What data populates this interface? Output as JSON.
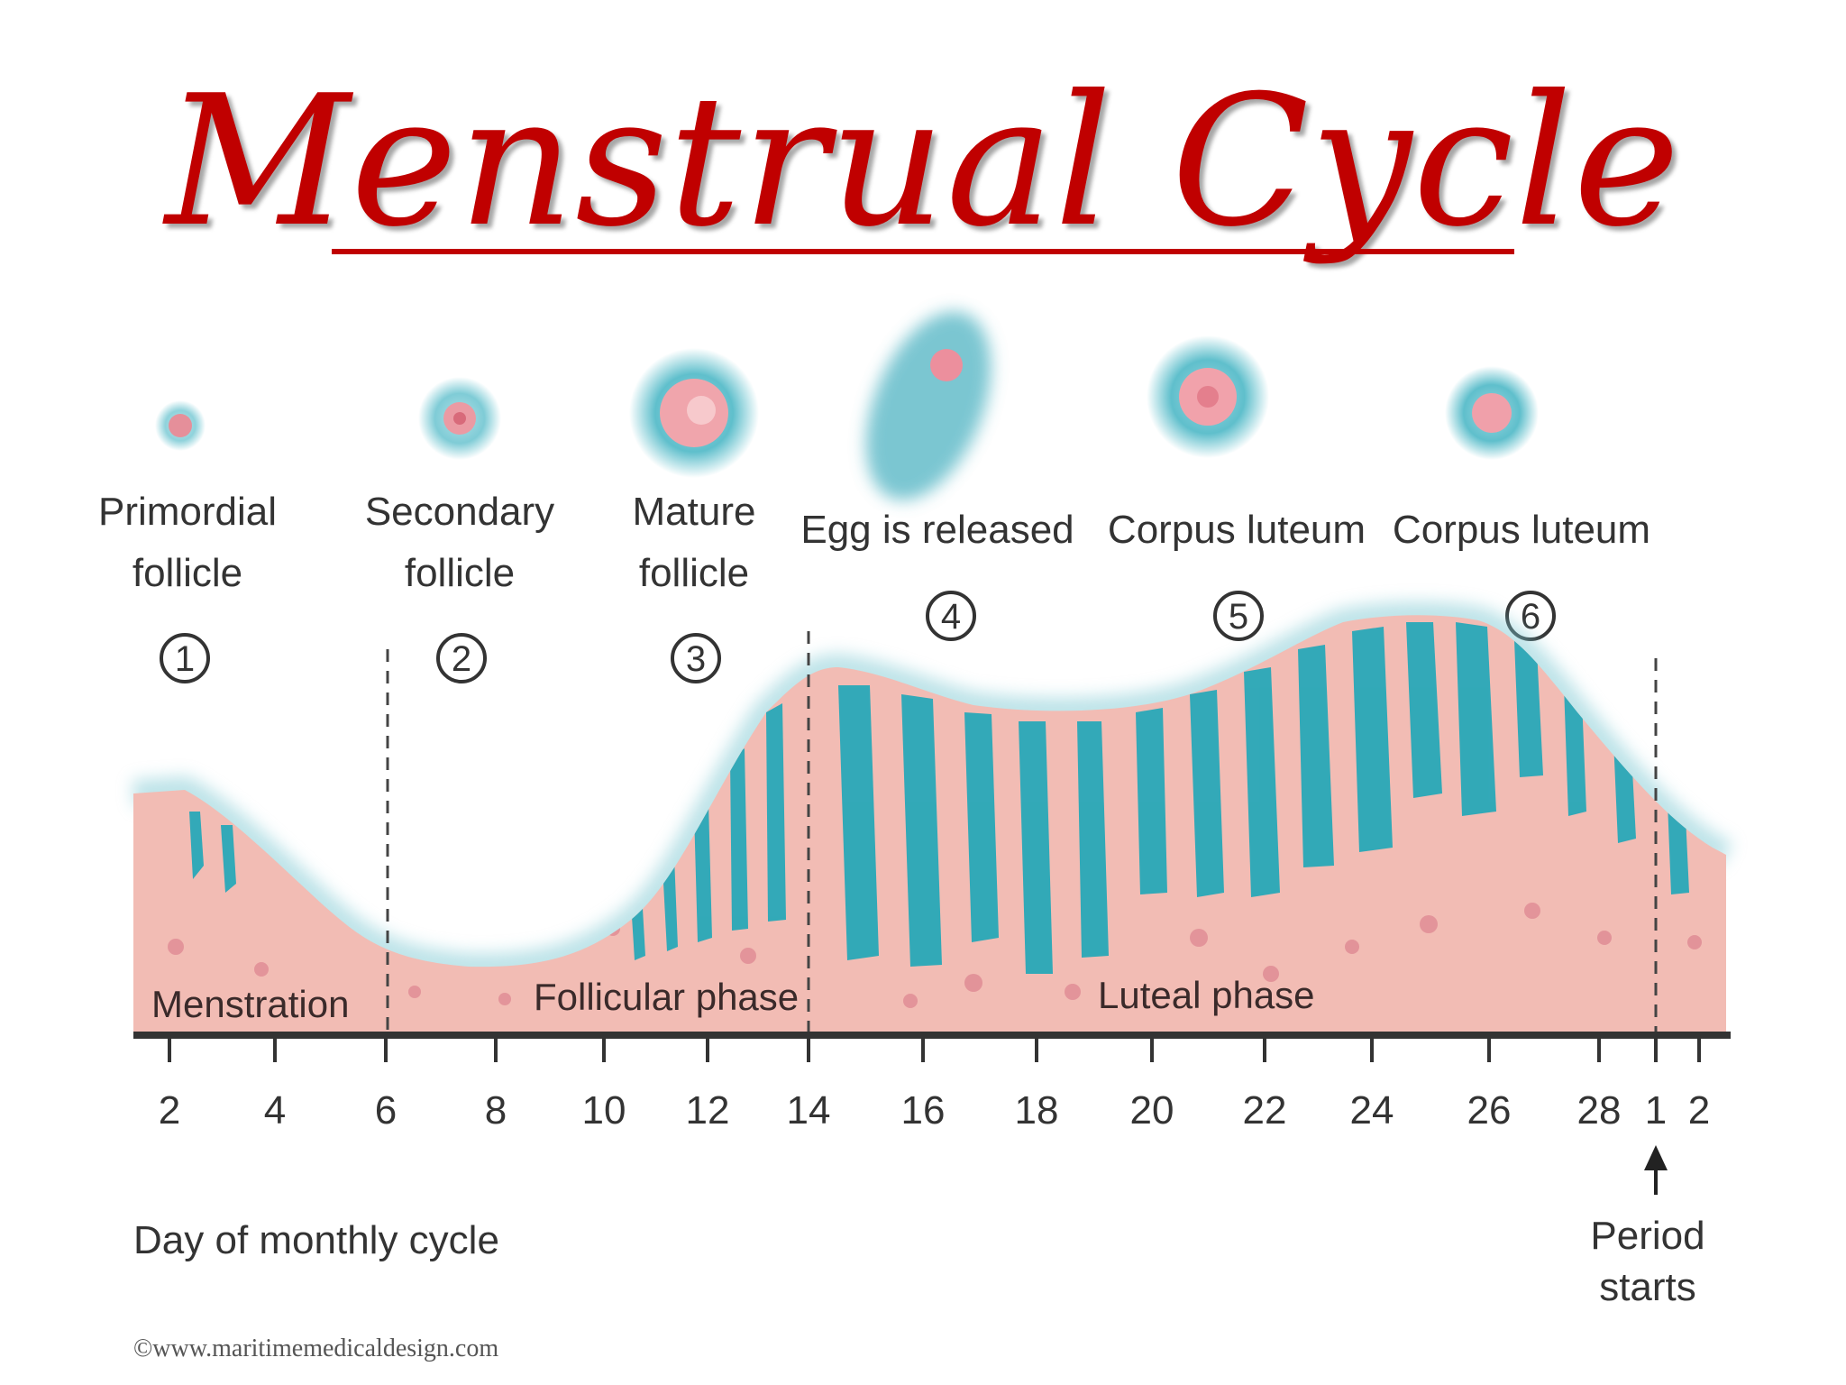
{
  "title": "Menstrual Cycle",
  "stages": [
    {
      "number": "1",
      "label_lines": [
        "Primordial",
        "follicle"
      ]
    },
    {
      "number": "2",
      "label_lines": [
        "Secondary",
        "follicle"
      ]
    },
    {
      "number": "3",
      "label_lines": [
        "Mature",
        "follicle"
      ]
    },
    {
      "number": "4",
      "label_lines": [
        "Egg is released"
      ]
    },
    {
      "number": "5",
      "label_lines": [
        "Corpus luteum"
      ]
    },
    {
      "number": "6",
      "label_lines": [
        "Corpus luteum"
      ]
    }
  ],
  "phases": [
    "Menstration",
    "Follicular phase",
    "Luteal phase"
  ],
  "axis": {
    "ticks": [
      "2",
      "4",
      "6",
      "8",
      "10",
      "12",
      "14",
      "16",
      "18",
      "20",
      "22",
      "24",
      "26",
      "28",
      "1",
      "2"
    ],
    "title": "Day of monthly cycle"
  },
  "period_marker": [
    "Period",
    "starts"
  ],
  "credit": "©www.maritimemedicaldesign.com",
  "colors": {
    "title": "#c00000",
    "tissue": "#f2bcb4",
    "gland": "#1ea7b8",
    "axis": "#333333"
  }
}
